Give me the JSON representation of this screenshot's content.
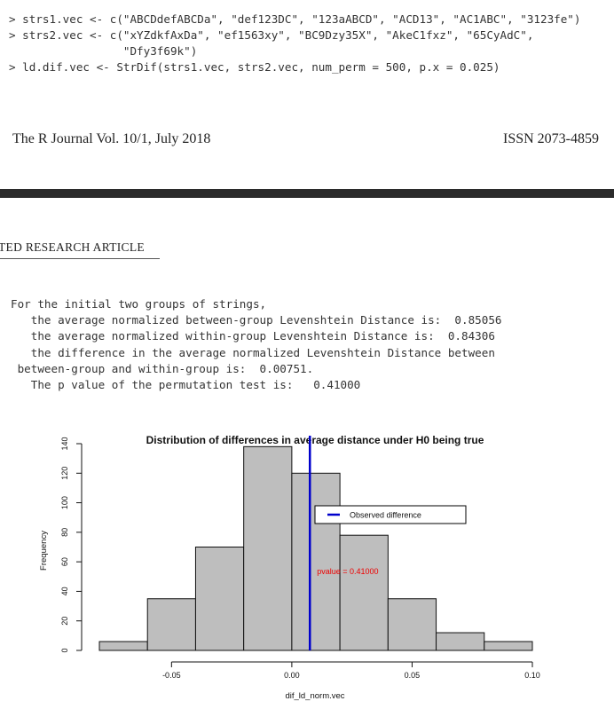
{
  "code": {
    "line1": "> strs1.vec <- c(\"ABCDdefABCDa\", \"def123DC\", \"123aABCD\", \"ACD13\", \"AC1ABC\", \"3123fe\")",
    "line2": "> strs2.vec <- c(\"xYZdkfAxDa\", \"ef1563xy\", \"BC9Dzy35X\", \"AkeC1fxz\", \"65CyAdC\",",
    "line3": "                 \"Dfy3f69k\")",
    "line4": "> ld.dif.vec <- StrDif(strs1.vec, strs2.vec, num_perm = 500, p.x = 0.025)"
  },
  "journal": {
    "left": "The R Journal Vol. 10/1, July 2018",
    "right": "ISSN 2073-4859"
  },
  "section": {
    "heading": "TED RESEARCH ARTICLE"
  },
  "output": {
    "line1": "For the initial two groups of strings,",
    "line2": "   the average normalized between-group Levenshtein Distance is:  0.85056",
    "line3": "   the average normalized within-group Levenshtein Distance is:  0.84306",
    "line4": "   the difference in the average normalized Levenshtein Distance between",
    "line5": " between-group and within-group is:  0.00751.",
    "line6": "   The p value of the permutation test is:   0.41000"
  },
  "chart_data": {
    "type": "bar",
    "title": "Distribution of differences in average distance under H0 being true",
    "xlabel": "dif_ld_norm.vec",
    "ylabel": "Frequency",
    "bin_edges": [
      -0.08,
      -0.06,
      -0.04,
      -0.02,
      0.0,
      0.02,
      0.04,
      0.06,
      0.08,
      0.1
    ],
    "values": [
      6,
      35,
      70,
      138,
      120,
      78,
      35,
      12,
      6
    ],
    "xlim": [
      -0.08,
      0.1
    ],
    "ylim": [
      0,
      140
    ],
    "xticks": [
      -0.05,
      0.0,
      0.05,
      0.1
    ],
    "xtick_labels": [
      "-0.05",
      "0.00",
      "0.05",
      "0.10"
    ],
    "yticks": [
      0,
      20,
      40,
      60,
      80,
      100,
      120,
      140
    ],
    "ytick_labels": [
      "0",
      "20",
      "40",
      "60",
      "80",
      "100",
      "120",
      "140"
    ],
    "observed_difference": 0.00751,
    "legend_label": "Observed difference",
    "legend_position": "top-right",
    "annotation": "pvalue = 0.41000",
    "bar_color": "#bebebe",
    "line_color": "#0000cc",
    "annotation_color": "#ee0000",
    "grid": false
  }
}
